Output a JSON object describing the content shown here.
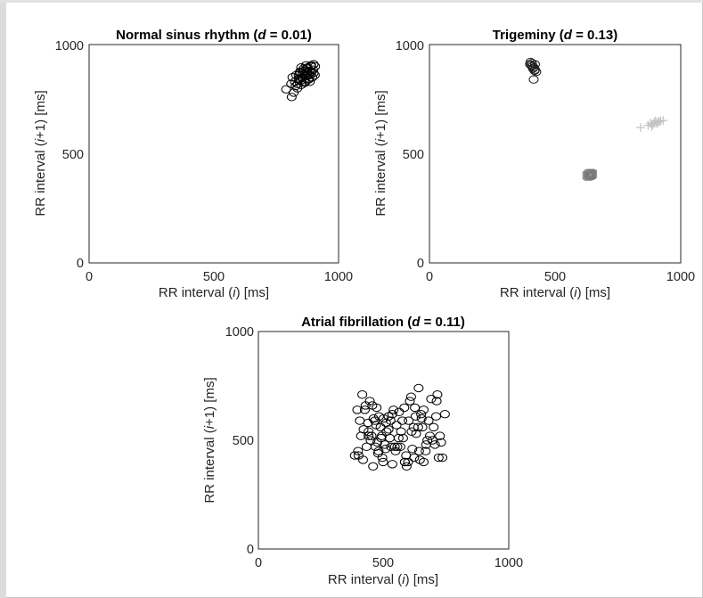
{
  "chart_data": [
    {
      "type": "scatter",
      "title_prefix": "Normal sinus rhythm (",
      "title_var": "d",
      "title_suffix": " = 0.01)",
      "xlabel_pre": "RR interval (",
      "xlabel_var": "i",
      "xlabel_post": ") [ms]",
      "ylabel_pre": "RR interval (",
      "ylabel_var": "i",
      "ylabel_post": "+1) [ms]",
      "xlim": [
        0,
        1000
      ],
      "ylim": [
        0,
        1000
      ],
      "xticks": [
        "0",
        "500",
        "1000"
      ],
      "yticks": [
        "0",
        "500",
        "1000"
      ],
      "grid": false,
      "series": [
        {
          "marker": "circle",
          "color": "#000000",
          "x": [
            790,
            812,
            820,
            828,
            836,
            842,
            848,
            855,
            862,
            868,
            874,
            880,
            886,
            892,
            898,
            906,
            815,
            830,
            845,
            860,
            875,
            890,
            905,
            825,
            840,
            855,
            870,
            885,
            900,
            835,
            850,
            865,
            880,
            895,
            845,
            860,
            875,
            890,
            810,
            870,
            880,
            850,
            865,
            900,
            840,
            885
          ],
          "y": [
            795,
            760,
            780,
            810,
            820,
            840,
            835,
            850,
            860,
            855,
            870,
            865,
            880,
            875,
            885,
            900,
            850,
            860,
            870,
            880,
            890,
            900,
            860,
            830,
            845,
            870,
            880,
            860,
            870,
            800,
            815,
            830,
            845,
            850,
            875,
            890,
            895,
            905,
            820,
            905,
            840,
            895,
            825,
            910,
            860,
            830
          ]
        }
      ]
    },
    {
      "type": "scatter",
      "title_prefix": "Trigeminy (",
      "title_var": "d",
      "title_suffix": " = 0.13)",
      "xlabel_pre": "RR interval (",
      "xlabel_var": "i",
      "xlabel_post": ") [ms]",
      "ylabel_pre": "RR interval (",
      "ylabel_var": "i",
      "ylabel_post": "+1) [ms]",
      "xlim": [
        0,
        1000
      ],
      "ylim": [
        0,
        1000
      ],
      "xticks": [
        "0",
        "500",
        "1000"
      ],
      "yticks": [
        "0",
        "500",
        "1000"
      ],
      "grid": false,
      "series": [
        {
          "marker": "circle",
          "color": "#1a1a1a",
          "x": [
            400,
            405,
            410,
            415,
            420,
            408,
            412,
            418,
            402,
            425,
            415,
            420
          ],
          "y": [
            910,
            905,
            900,
            895,
            885,
            915,
            890,
            880,
            920,
            875,
            840,
            910
          ]
        },
        {
          "marker": "square",
          "color": "#7a7a7a",
          "x": [
            625,
            630,
            635,
            640,
            645,
            650,
            632,
            642,
            648,
            638
          ],
          "y": [
            400,
            405,
            410,
            398,
            402,
            408,
            395,
            412,
            404,
            400
          ]
        },
        {
          "marker": "cross",
          "color": "#c4c4c4",
          "x": [
            840,
            870,
            880,
            890,
            895,
            900,
            905,
            910,
            915,
            920,
            930,
            885
          ],
          "y": [
            620,
            630,
            640,
            635,
            645,
            650,
            640,
            645,
            648,
            650,
            652,
            625
          ]
        }
      ]
    },
    {
      "type": "scatter",
      "title_prefix": "Atrial fibrillation (",
      "title_var": "d",
      "title_suffix": " = 0.11)",
      "xlabel_pre": "RR interval (",
      "xlabel_var": "i",
      "xlabel_post": ") [ms]",
      "ylabel_pre": "RR interval (",
      "ylabel_var": "i",
      "ylabel_post": "+1) [ms]",
      "xlim": [
        0,
        1000
      ],
      "ylim": [
        0,
        1000
      ],
      "xticks": [
        "0",
        "500",
        "1000"
      ],
      "yticks": [
        "0",
        "500",
        "1000"
      ],
      "grid": false,
      "series": [
        {
          "marker": "circle",
          "color": "#000000",
          "x": [
            400,
            405,
            415,
            425,
            440,
            455,
            470,
            480,
            490,
            500,
            505,
            520,
            535,
            545,
            560,
            575,
            590,
            610,
            625,
            640,
            655,
            670,
            690,
            710,
            725,
            735,
            745,
            410,
            420,
            432,
            445,
            460,
            475,
            488,
            495,
            510,
            525,
            540,
            555,
            570,
            585,
            600,
            615,
            630,
            645,
            660,
            675,
            700,
            715,
            730,
            395,
            418,
            438,
            452,
            468,
            482,
            498,
            512,
            528,
            548,
            562,
            578,
            592,
            605,
            622,
            638,
            652,
            668,
            685,
            705,
            720,
            398,
            428,
            448,
            465,
            478,
            493,
            508,
            520,
            535,
            552,
            567,
            583,
            598,
            612,
            628,
            642,
            660,
            680,
            695,
            712,
            385,
            440,
            458,
            472,
            530,
            585,
            620,
            650
          ],
          "y": [
            430,
            590,
            710,
            640,
            540,
            660,
            570,
            450,
            510,
            600,
            480,
            550,
            620,
            470,
            510,
            590,
            430,
            700,
            650,
            740,
            560,
            480,
            690,
            610,
            520,
            420,
            620,
            520,
            550,
            470,
            680,
            600,
            490,
            560,
            420,
            580,
            510,
            640,
            470,
            540,
            400,
            590,
            460,
            530,
            410,
            640,
            500,
            560,
            710,
            490,
            640,
            410,
            580,
            520,
            470,
            610,
            400,
            540,
            590,
            450,
            630,
            510,
            380,
            680,
            420,
            560,
            600,
            450,
            520,
            480,
            420,
            450,
            660,
            500,
            590,
            440,
            520,
            460,
            610,
            390,
            570,
            470,
            650,
            400,
            540,
            610,
            450,
            400,
            590,
            500,
            680,
            430,
            520,
            380,
            650,
            470,
            400,
            560,
            620
          ]
        }
      ]
    }
  ]
}
